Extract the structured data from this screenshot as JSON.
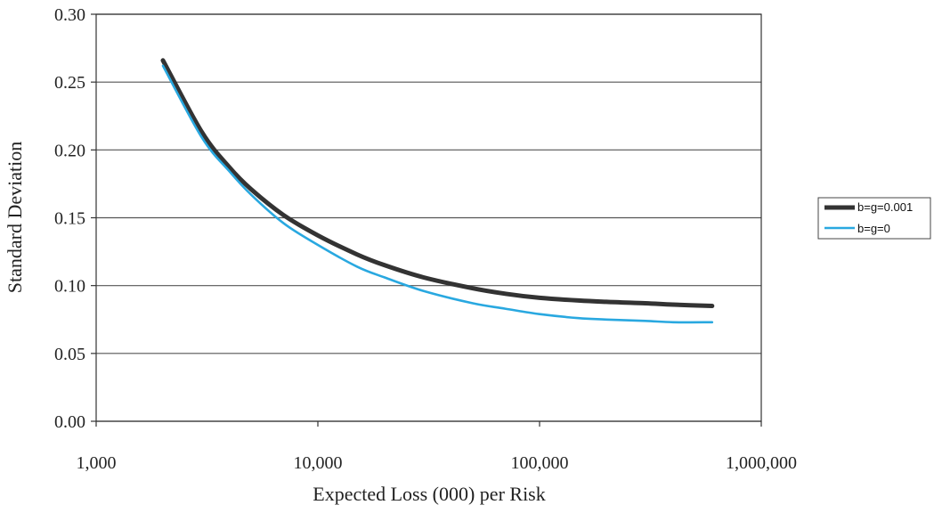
{
  "chart_data": {
    "type": "line",
    "xlabel": "Expected Loss (000) per Risk",
    "ylabel": "Standard Deviation",
    "x_scale": "log",
    "xlim": [
      1000,
      1000000
    ],
    "ylim": [
      0,
      0.3
    ],
    "x_ticks": [
      "1,000",
      "10,000",
      "100,000",
      "1,000,000"
    ],
    "y_ticks": [
      "0.00",
      "0.05",
      "0.10",
      "0.15",
      "0.20",
      "0.25",
      "0.30"
    ],
    "grid": "horizontal",
    "legend_position": "right",
    "series": [
      {
        "name": "b=g=0.001",
        "color": "#333333",
        "x": [
          2000,
          3000,
          4000,
          5000,
          7000,
          10000,
          15000,
          20000,
          30000,
          50000,
          70000,
          100000,
          150000,
          200000,
          300000,
          400000,
          600000
        ],
        "y": [
          0.266,
          0.213,
          0.187,
          0.171,
          0.152,
          0.137,
          0.123,
          0.115,
          0.106,
          0.098,
          0.094,
          0.091,
          0.089,
          0.088,
          0.087,
          0.086,
          0.085
        ]
      },
      {
        "name": "b=g=0",
        "color": "#29a8e0",
        "x": [
          2000,
          3000,
          4000,
          5000,
          7000,
          10000,
          15000,
          20000,
          30000,
          50000,
          70000,
          100000,
          150000,
          200000,
          300000,
          400000,
          600000
        ],
        "y": [
          0.262,
          0.209,
          0.184,
          0.167,
          0.146,
          0.13,
          0.114,
          0.106,
          0.096,
          0.087,
          0.083,
          0.079,
          0.076,
          0.075,
          0.074,
          0.073,
          0.073
        ]
      }
    ]
  }
}
